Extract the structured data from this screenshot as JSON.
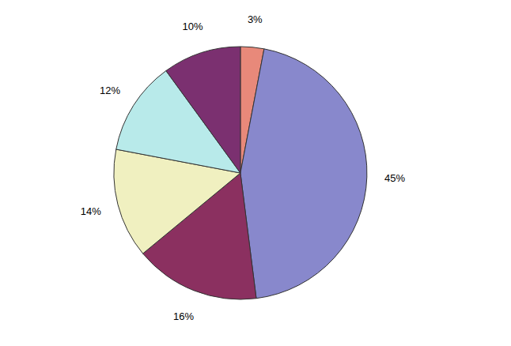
{
  "chart_data": {
    "type": "pie",
    "values": [
      3,
      45,
      16,
      14,
      12,
      10
    ],
    "value_labels": [
      "3%",
      "45%",
      "16%",
      "14%",
      "12%",
      "10%"
    ],
    "colors": [
      "#e8897a",
      "#8888cc",
      "#8b3060",
      "#f0f0c0",
      "#b8eaea",
      "#7b3070"
    ],
    "data_labels": true
  }
}
